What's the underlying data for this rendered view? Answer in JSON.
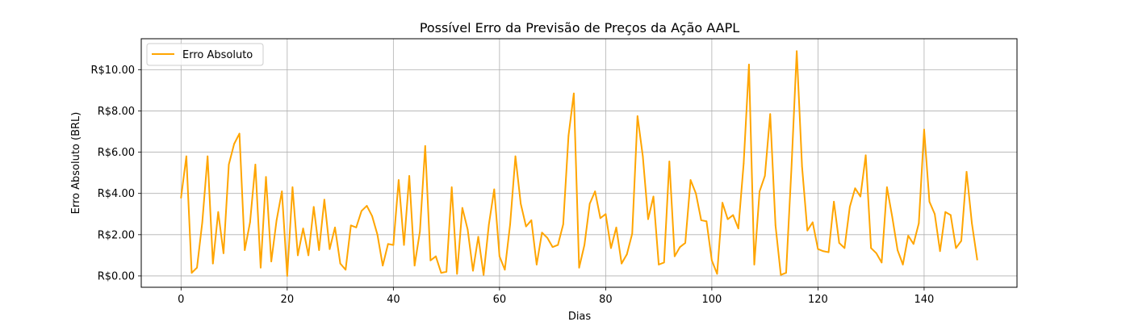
{
  "chart_data": {
    "type": "line",
    "title": "Possível Erro da Previsão de Preços da Ação AAPL",
    "xlabel": "Dias",
    "ylabel": "Erro Absoluto (BRL)",
    "xlim": [
      -7.5,
      157.5
    ],
    "ylim": [
      -0.55,
      11.5
    ],
    "x_ticks": [
      0,
      20,
      40,
      60,
      80,
      100,
      120,
      140
    ],
    "x_tick_labels": [
      "0",
      "20",
      "40",
      "60",
      "80",
      "100",
      "120",
      "140"
    ],
    "y_ticks": [
      0,
      2,
      4,
      6,
      8,
      10
    ],
    "y_tick_labels": [
      "R$0.00",
      "R$2.00",
      "R$4.00",
      "R$6.00",
      "R$8.00",
      "R$10.00"
    ],
    "grid": true,
    "legend": {
      "position": "upper left"
    },
    "series": [
      {
        "name": "Erro Absoluto",
        "color": "#FFA500",
        "x": [
          0,
          1,
          2,
          3,
          4,
          5,
          6,
          7,
          8,
          9,
          10,
          11,
          12,
          13,
          14,
          15,
          16,
          17,
          18,
          19,
          20,
          21,
          22,
          23,
          24,
          25,
          26,
          27,
          28,
          29,
          30,
          31,
          32,
          33,
          34,
          35,
          36,
          37,
          38,
          39,
          40,
          41,
          42,
          43,
          44,
          45,
          46,
          47,
          48,
          49,
          50,
          51,
          52,
          53,
          54,
          55,
          56,
          57,
          58,
          59,
          60,
          61,
          62,
          63,
          64,
          65,
          66,
          67,
          68,
          69,
          70,
          71,
          72,
          73,
          74,
          75,
          76,
          77,
          78,
          79,
          80,
          81,
          82,
          83,
          84,
          85,
          86,
          87,
          88,
          89,
          90,
          91,
          92,
          93,
          94,
          95,
          96,
          97,
          98,
          99,
          100,
          101,
          102,
          103,
          104,
          105,
          106,
          107,
          108,
          109,
          110,
          111,
          112,
          113,
          114,
          115,
          116,
          117,
          118,
          119,
          120,
          121,
          122,
          123,
          124,
          125,
          126,
          127,
          128,
          129,
          130,
          131,
          132,
          133,
          134,
          135,
          136,
          137,
          138,
          139,
          140,
          141,
          142,
          143,
          144,
          145,
          146,
          147,
          148,
          149,
          150
        ],
        "values": [
          3.8,
          5.8,
          0.15,
          0.4,
          2.6,
          5.8,
          0.6,
          3.1,
          1.1,
          5.4,
          6.4,
          6.9,
          1.25,
          2.6,
          5.4,
          0.4,
          4.8,
          0.7,
          2.7,
          4.1,
          0.0,
          4.3,
          1.0,
          2.3,
          1.0,
          3.35,
          1.25,
          3.7,
          1.3,
          2.35,
          0.6,
          0.3,
          2.45,
          2.35,
          3.15,
          3.4,
          2.9,
          2.0,
          0.5,
          1.55,
          1.5,
          4.65,
          1.5,
          4.85,
          0.5,
          2.15,
          6.3,
          0.75,
          0.95,
          0.15,
          0.2,
          4.3,
          0.1,
          3.3,
          2.25,
          0.25,
          1.9,
          0.05,
          2.5,
          4.2,
          0.95,
          0.3,
          2.5,
          5.8,
          3.5,
          2.4,
          2.7,
          0.55,
          2.1,
          1.85,
          1.4,
          1.5,
          2.5,
          6.8,
          8.85,
          0.4,
          1.5,
          3.5,
          4.1,
          2.8,
          3.0,
          1.35,
          2.35,
          0.6,
          1.05,
          2.05,
          7.75,
          5.8,
          2.75,
          3.85,
          0.55,
          0.65,
          5.55,
          0.95,
          1.4,
          1.6,
          4.65,
          4.0,
          2.7,
          2.65,
          0.75,
          0.1,
          3.55,
          2.75,
          2.95,
          2.3,
          5.45,
          10.25,
          0.55,
          4.1,
          4.85,
          7.85,
          2.45,
          0.05,
          0.15,
          5.2,
          10.9,
          5.3,
          2.2,
          2.6,
          1.3,
          1.2,
          1.15,
          3.6,
          1.6,
          1.35,
          3.35,
          4.25,
          3.85,
          5.85,
          1.35,
          1.1,
          0.65,
          4.3,
          2.85,
          1.25,
          0.55,
          1.95,
          1.55,
          2.55,
          7.1,
          3.6,
          3.0,
          1.2,
          3.1,
          2.95,
          1.35,
          1.7,
          5.05,
          2.55,
          0.8
        ]
      }
    ]
  }
}
